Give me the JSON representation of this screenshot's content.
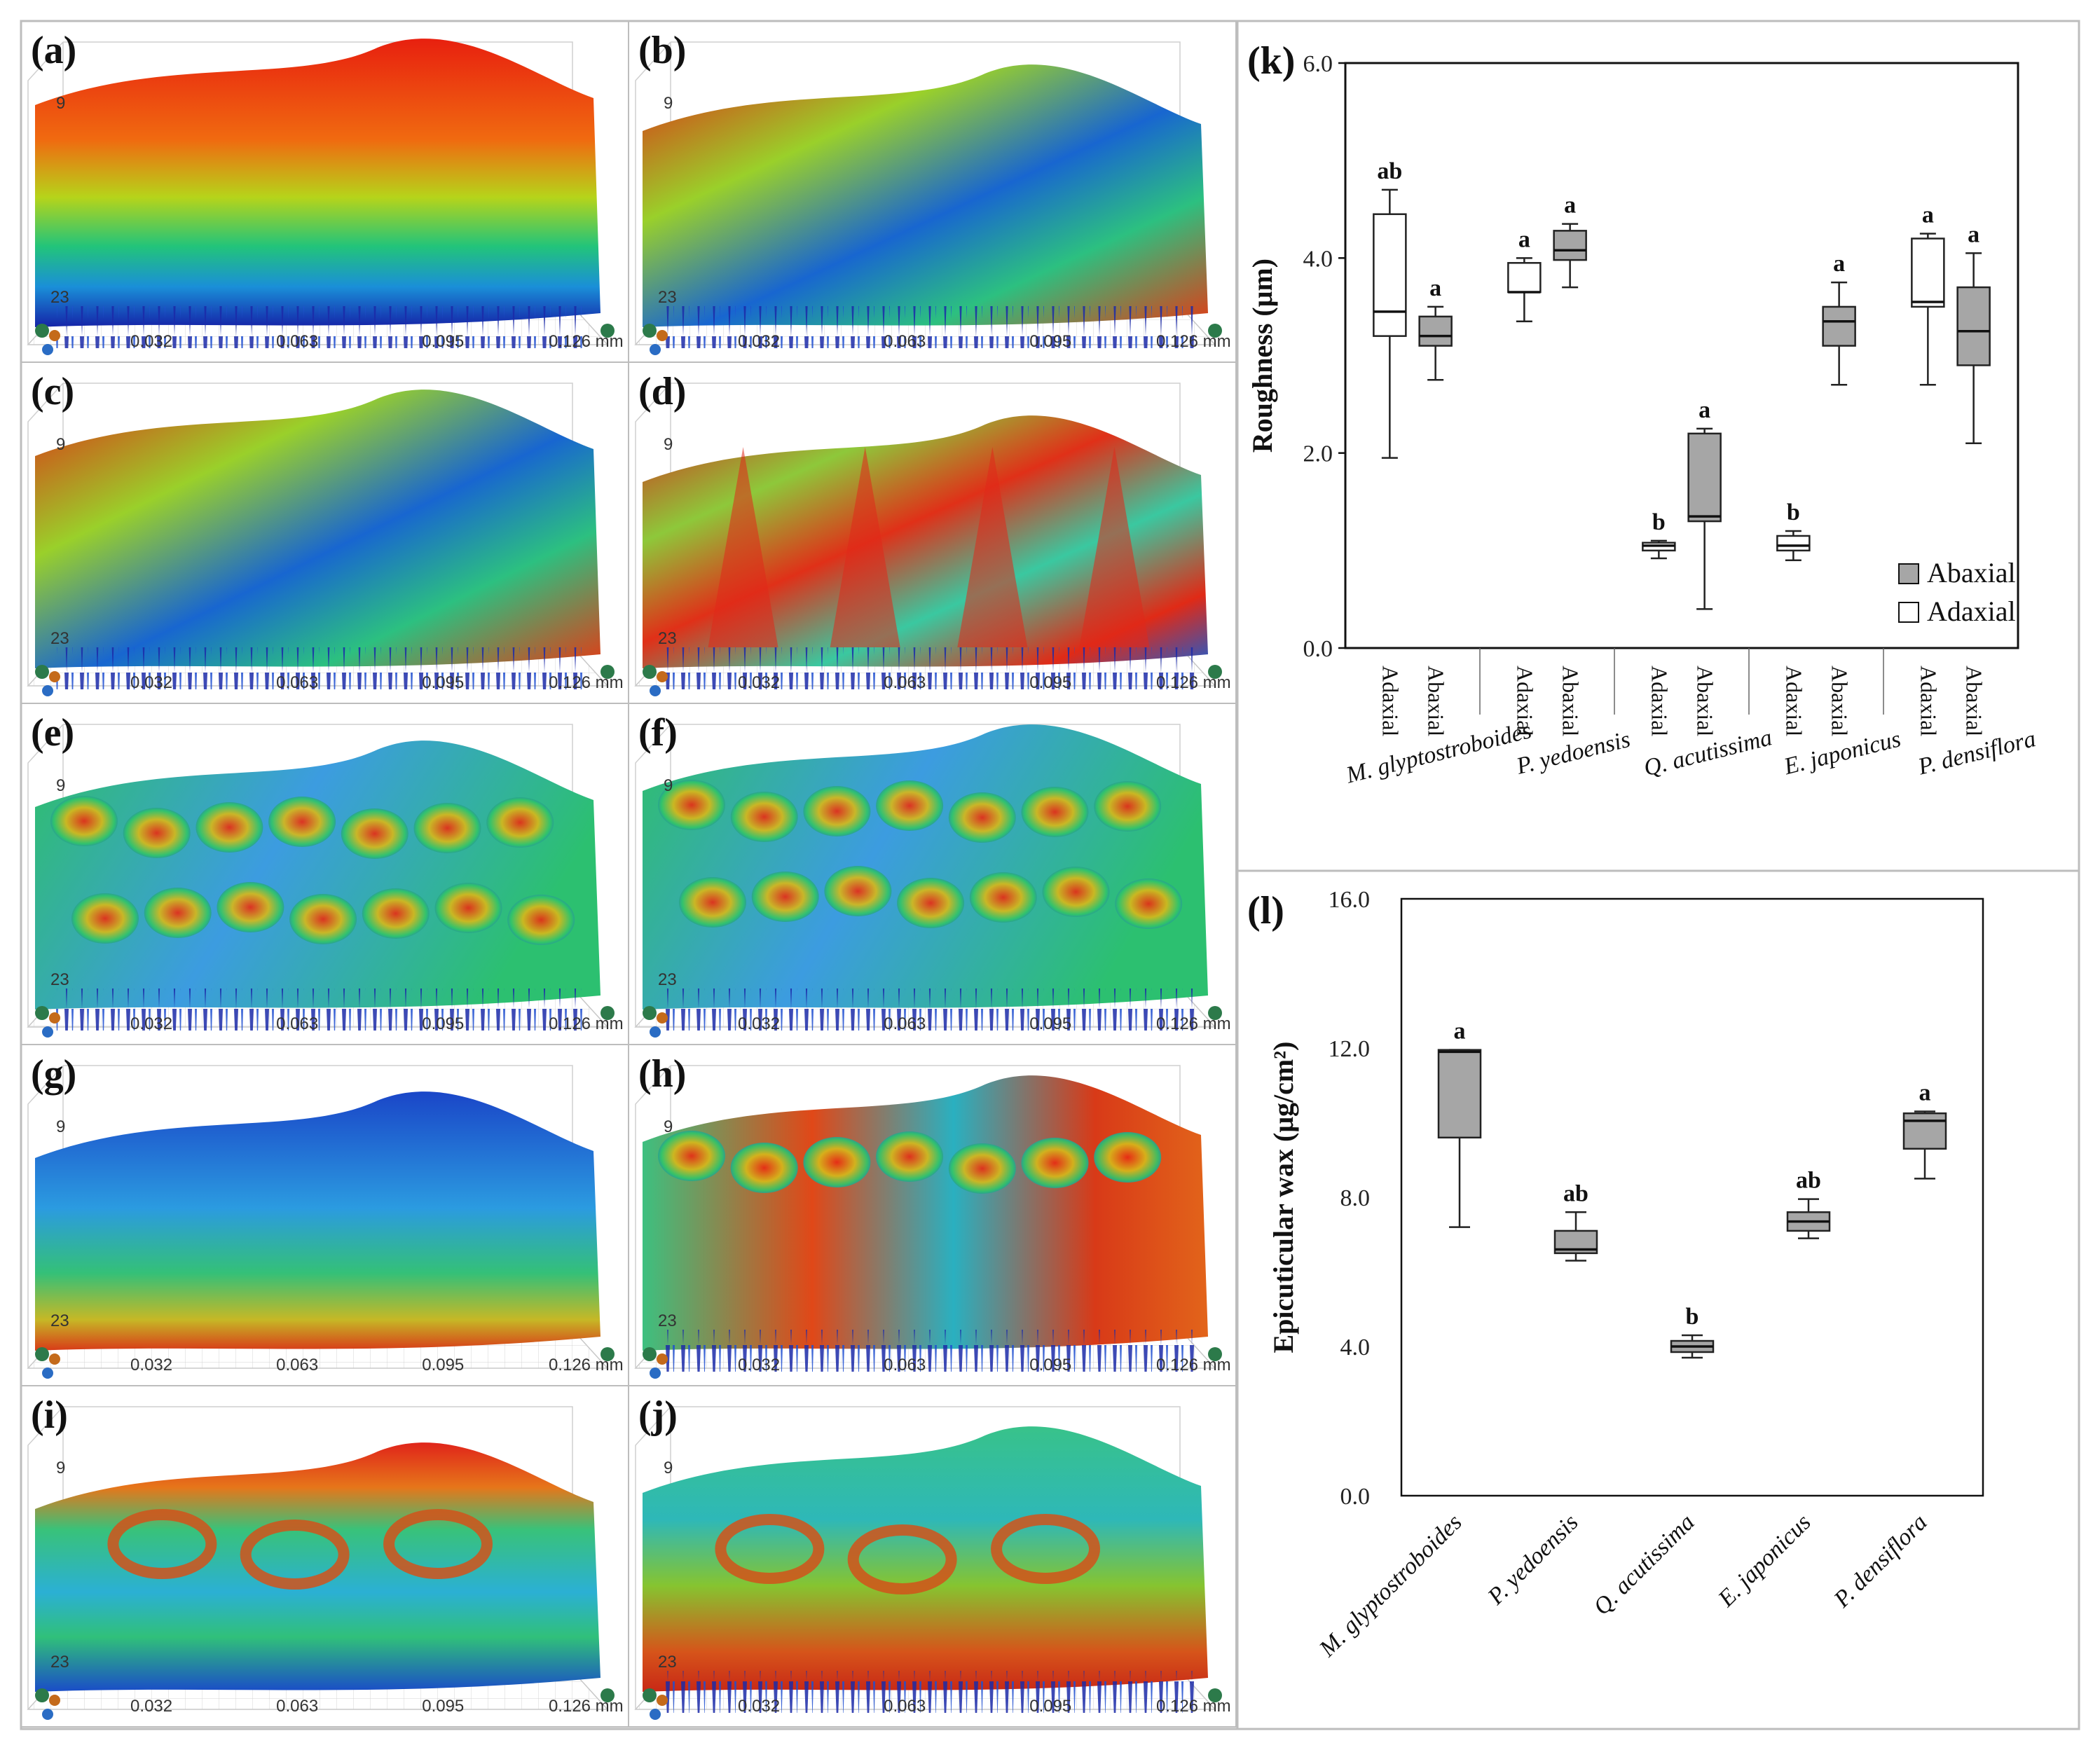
{
  "surface_panels": [
    {
      "letter": "(a)",
      "palette": "warm-top",
      "z_ticks": [
        "9",
        "23"
      ],
      "x_ticks": [
        "0.032",
        "0.063",
        "0.095",
        "0.126 mm"
      ]
    },
    {
      "letter": "(b)",
      "palette": "valley",
      "z_ticks": [
        "9",
        "23"
      ],
      "x_ticks": [
        "0.032",
        "0.063",
        "0.095",
        "0.126 mm"
      ]
    },
    {
      "letter": "(c)",
      "palette": "valley",
      "z_ticks": [
        "9",
        "23"
      ],
      "x_ticks": [
        "0.032",
        "0.063",
        "0.095",
        "0.126 mm"
      ]
    },
    {
      "letter": "(d)",
      "palette": "ridges",
      "z_ticks": [
        "9",
        "23"
      ],
      "x_ticks": [
        "0.032",
        "0.063",
        "0.095",
        "0.126 mm"
      ]
    },
    {
      "letter": "(e)",
      "palette": "bumps",
      "z_ticks": [
        "9",
        "23"
      ],
      "x_ticks": [
        "0.032",
        "0.063",
        "0.095",
        "0.126 mm"
      ]
    },
    {
      "letter": "(f)",
      "palette": "bumps2",
      "z_ticks": [
        "9",
        "23"
      ],
      "x_ticks": [
        "0.032",
        "0.063",
        "0.095",
        "0.126 mm"
      ]
    },
    {
      "letter": "(g)",
      "palette": "flat-blue",
      "z_ticks": [
        "9",
        "23"
      ],
      "x_ticks": [
        "0.032",
        "0.063",
        "0.095",
        "0.126 mm"
      ]
    },
    {
      "letter": "(h)",
      "palette": "cells",
      "z_ticks": [
        "9",
        "23"
      ],
      "x_ticks": [
        "0.032",
        "0.063",
        "0.095",
        "0.126 mm"
      ]
    },
    {
      "letter": "(i)",
      "palette": "stomata-red",
      "z_ticks": [
        "9",
        "23"
      ],
      "x_ticks": [
        "0.032",
        "0.063",
        "0.095",
        "0.126 mm"
      ]
    },
    {
      "letter": "(j)",
      "palette": "stomata-green",
      "z_ticks": [
        "9",
        "23"
      ],
      "x_ticks": [
        "0.032",
        "0.063",
        "0.095",
        "0.126 mm"
      ]
    }
  ],
  "colors": {
    "abaxial_fill": "#a6a6a6",
    "adaxial_fill": "#ffffff",
    "frame": "#222222"
  },
  "chart_data": [
    {
      "panel_letter": "(k)",
      "type": "box",
      "ylabel": "Roughness (μm)",
      "ylim": [
        0,
        6
      ],
      "yticks": [
        "0.0",
        "2.0",
        "4.0",
        "6.0"
      ],
      "legend": [
        {
          "label": "Abaxial",
          "fill": "#a6a6a6"
        },
        {
          "label": "Adaxial",
          "fill": "#ffffff"
        }
      ],
      "legend_position": "bottom-right",
      "species": [
        "M. glyptostroboides",
        "P. yedoensis",
        "Q. acutissima",
        "E. japonicus",
        "P. densiflora"
      ],
      "boxes": [
        {
          "species": "M. glyptostroboides",
          "side": "Adaxial",
          "min": 1.95,
          "q1": 3.2,
          "median": 3.45,
          "q3": 4.45,
          "max": 4.7,
          "sig": "ab"
        },
        {
          "species": "M. glyptostroboides",
          "side": "Abaxial",
          "min": 2.75,
          "q1": 3.1,
          "median": 3.2,
          "q3": 3.4,
          "max": 3.5,
          "sig": "a"
        },
        {
          "species": "P. yedoensis",
          "side": "Adaxial",
          "min": 3.35,
          "q1": 3.65,
          "median": 3.65,
          "q3": 3.95,
          "max": 4.0,
          "sig": "a"
        },
        {
          "species": "P. yedoensis",
          "side": "Abaxial",
          "min": 3.7,
          "q1": 3.98,
          "median": 4.08,
          "q3": 4.28,
          "max": 4.35,
          "sig": "a"
        },
        {
          "species": "Q. acutissima",
          "side": "Adaxial",
          "min": 0.92,
          "q1": 1.0,
          "median": 1.05,
          "q3": 1.08,
          "max": 1.1,
          "sig": "b"
        },
        {
          "species": "Q. acutissima",
          "side": "Abaxial",
          "min": 0.4,
          "q1": 1.3,
          "median": 1.35,
          "q3": 2.2,
          "max": 2.25,
          "sig": "a"
        },
        {
          "species": "E. japonicus",
          "side": "Adaxial",
          "min": 0.9,
          "q1": 1.0,
          "median": 1.05,
          "q3": 1.15,
          "max": 1.2,
          "sig": "b"
        },
        {
          "species": "E. japonicus",
          "side": "Abaxial",
          "min": 2.7,
          "q1": 3.1,
          "median": 3.35,
          "q3": 3.5,
          "max": 3.75,
          "sig": "a"
        },
        {
          "species": "P. densiflora",
          "side": "Adaxial",
          "min": 2.7,
          "q1": 3.5,
          "median": 3.55,
          "q3": 4.2,
          "max": 4.25,
          "sig": "a"
        },
        {
          "species": "P. densiflora",
          "side": "Abaxial",
          "min": 2.1,
          "q1": 2.9,
          "median": 3.25,
          "q3": 3.7,
          "max": 4.05,
          "sig": "a"
        }
      ],
      "side_labels": [
        "Adaxial",
        "Abaxial"
      ]
    },
    {
      "panel_letter": "(l)",
      "type": "box",
      "ylabel": "Epicuticular wax (μg/cm²)",
      "ylim": [
        0,
        16
      ],
      "yticks": [
        "0.0",
        "4.0",
        "8.0",
        "12.0",
        "16.0"
      ],
      "species": [
        "M. glyptostroboides",
        "P. yedoensis",
        "Q. acutissima",
        "E. japonicus",
        "P. densiflora"
      ],
      "boxes": [
        {
          "species": "M. glyptostroboides",
          "min": 7.2,
          "q1": 9.6,
          "median": 11.9,
          "q3": 11.95,
          "max": 11.95,
          "sig": "a"
        },
        {
          "species": "P. yedoensis",
          "min": 6.3,
          "q1": 6.5,
          "median": 6.6,
          "q3": 7.1,
          "max": 7.6,
          "sig": "ab"
        },
        {
          "species": "Q. acutissima",
          "min": 3.7,
          "q1": 3.85,
          "median": 4.0,
          "q3": 4.15,
          "max": 4.3,
          "sig": "b"
        },
        {
          "species": "E. japonicus",
          "min": 6.9,
          "q1": 7.1,
          "median": 7.35,
          "q3": 7.6,
          "max": 7.95,
          "sig": "ab"
        },
        {
          "species": "P. densiflora",
          "min": 8.5,
          "q1": 9.3,
          "median": 10.05,
          "q3": 10.25,
          "max": 10.3,
          "sig": "a"
        }
      ]
    }
  ]
}
